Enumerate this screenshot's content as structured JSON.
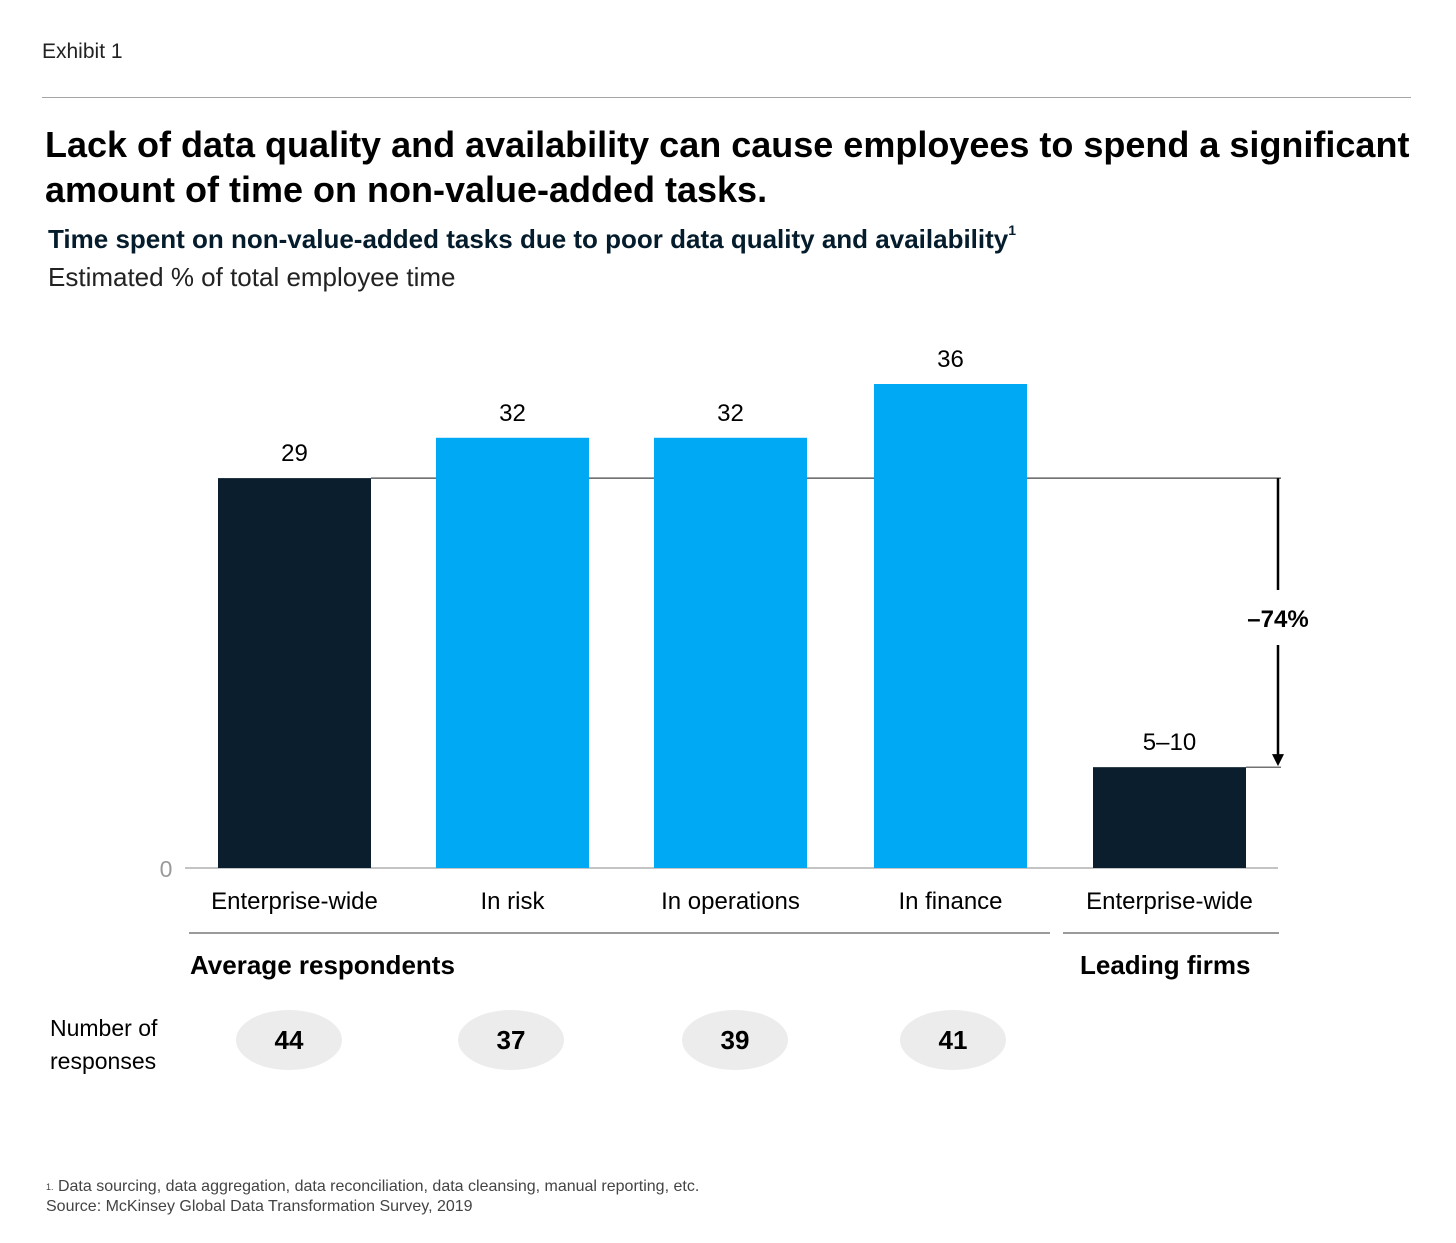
{
  "header": {
    "exhibit": "Exhibit 1",
    "title": "Lack of data quality and availability can cause employees to spend a significant amount of time on non-value-added tasks.",
    "subtitle": "Time spent on non-value-added tasks due to poor data quality and availability",
    "subtitle_marker": "1",
    "unit": "Estimated % of total employee time"
  },
  "chart_data": {
    "type": "bar",
    "title": "Time spent on non-value-added tasks due to poor data quality and availability",
    "ylabel": "Estimated % of total employee time",
    "ylim": [
      0,
      36
    ],
    "y_tick_labels": [
      "0"
    ],
    "categories": [
      "Enterprise-wide",
      "In risk",
      "In operations",
      "In finance",
      "Enterprise-wide"
    ],
    "values": [
      29,
      32,
      32,
      36,
      7.5
    ],
    "value_labels": [
      "29",
      "32",
      "32",
      "36",
      "5–10"
    ],
    "colors": [
      "#0a1e2e",
      "#00a9f4",
      "#00a9f4",
      "#00a9f4",
      "#0a1e2e"
    ],
    "groups": [
      {
        "label": "Average respondents",
        "categories": [
          0,
          1,
          2,
          3
        ]
      },
      {
        "label": "Leading firms",
        "categories": [
          4
        ]
      }
    ],
    "annotation": {
      "label": "–74%",
      "from_value": 29,
      "to_value": 7.5
    }
  },
  "responses": {
    "label": "Number of responses",
    "values": [
      "44",
      "37",
      "39",
      "41"
    ]
  },
  "footnotes": {
    "note_marker": "1.",
    "note": "Data sourcing, data aggregation, data reconciliation, data cleansing, manual reporting, etc.",
    "source": "Source: McKinsey Global Data Transformation Survey, 2019"
  }
}
